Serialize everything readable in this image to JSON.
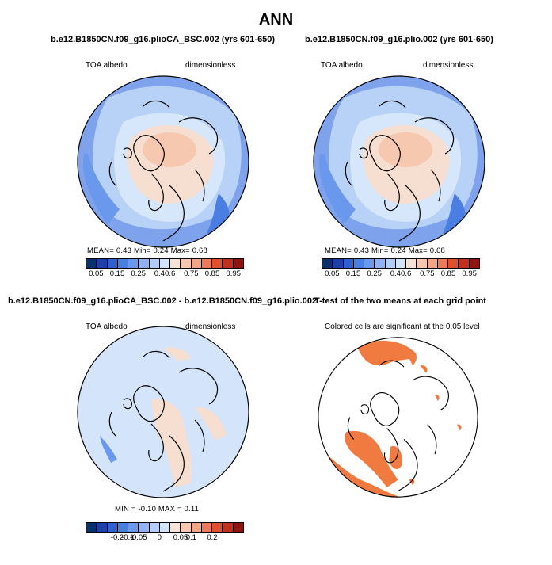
{
  "title": "ANN",
  "panels": [
    {
      "title": "b.e12.B1850CN.f09_g16.plioCA_BSC.002 (yrs 601-650)",
      "left_label": "TOA albedo",
      "right_label": "dimensionless",
      "stats": "MEAN=    0.43   Min=    0.24   Max=    0.68",
      "colorbar_ticks": [
        "0.05",
        "0.15",
        "0.25",
        "0.4",
        "0.6",
        "0.75",
        "0.85",
        "0.95"
      ]
    },
    {
      "title": "b.e12.B1850CN.f09_g16.plio.002 (yrs 601-650)",
      "left_label": "TOA albedo",
      "right_label": "dimensionless",
      "stats": "MEAN=    0.43   Min=    0.24   Max=    0.68",
      "colorbar_ticks": [
        "0.05",
        "0.15",
        "0.25",
        "0.4",
        "0.6",
        "0.75",
        "0.85",
        "0.95"
      ]
    },
    {
      "title": "b.e12.B1850CN.f09_g16.plioCA_BSC.002 - b.e12.B1850CN.f09_g16.plio.002",
      "left_label": "TOA albedo",
      "right_label": "dimensionless",
      "stats": "MIN  =    -0.10  MAX  =    0.11",
      "colorbar_ticks": [
        "-0.2",
        "-0.1",
        "-0.05",
        "0",
        "0.05",
        "0.1",
        "0.2"
      ]
    },
    {
      "title": "T-test of the two means at each grid point",
      "subtitle": "Colored cells are significant at the 0.05 level"
    }
  ],
  "colors": {
    "abs_scale": [
      "#08306b",
      "#1c3fa8",
      "#2f5fd0",
      "#4a7ee3",
      "#6a98ec",
      "#8fb3f2",
      "#b2cdf6",
      "#d4e4fb",
      "#f7e3d6",
      "#f6c8b0",
      "#f3a588",
      "#ec7a58",
      "#e0502e",
      "#c2301c",
      "#8e1410"
    ],
    "diff_scale": [
      "#08306b",
      "#1c3fa8",
      "#2f5fd0",
      "#4a7ee3",
      "#6a98ec",
      "#8fb3f2",
      "#b2cdf6",
      "#d4e4fb",
      "#f7e3d6",
      "#f6c8b0",
      "#f3a588",
      "#ec7a58",
      "#e0502e",
      "#c2301c",
      "#8e1410"
    ],
    "ttest": "#f07a40",
    "coast": "#000000"
  }
}
